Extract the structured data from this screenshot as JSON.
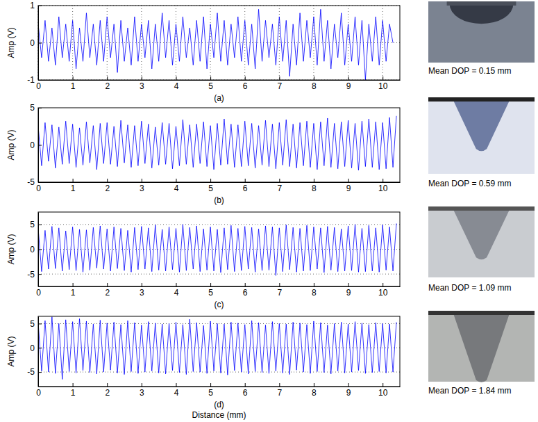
{
  "chart_data": [
    {
      "type": "line",
      "title": "(a)",
      "ylabel": "Amp (V)",
      "color": "#0000ff",
      "grid": true,
      "xlim": [
        0,
        10.5
      ],
      "xticks": [
        0,
        1,
        2,
        3,
        4,
        5,
        6,
        7,
        8,
        9,
        10
      ],
      "ylim": [
        -1,
        1
      ],
      "yticks": [
        -1,
        0,
        1
      ],
      "annotations": [
        "Mean DOP = 0.15 mm"
      ],
      "x": [
        0,
        0.1,
        0.2,
        0.3,
        0.4,
        0.5,
        0.6,
        0.7,
        0.8,
        0.9,
        1,
        1.1,
        1.2,
        1.3,
        1.4,
        1.5,
        1.6,
        1.7,
        1.8,
        1.9,
        2,
        2.1,
        2.2,
        2.3,
        2.4,
        2.5,
        2.6,
        2.7,
        2.8,
        2.9,
        3,
        3.1,
        3.2,
        3.3,
        3.4,
        3.5,
        3.6,
        3.7,
        3.8,
        3.9,
        4,
        4.1,
        4.2,
        4.3,
        4.4,
        4.5,
        4.6,
        4.7,
        4.8,
        4.9,
        5,
        5.1,
        5.2,
        5.3,
        5.4,
        5.5,
        5.6,
        5.7,
        5.8,
        5.9,
        6,
        6.1,
        6.2,
        6.3,
        6.4,
        6.5,
        6.6,
        6.7,
        6.8,
        6.9,
        7,
        7.1,
        7.2,
        7.3,
        7.4,
        7.5,
        7.6,
        7.7,
        7.8,
        7.9,
        8,
        8.1,
        8.2,
        8.3,
        8.4,
        8.5,
        8.6,
        8.7,
        8.8,
        8.9,
        9,
        9.1,
        9.2,
        9.3,
        9.4,
        9.5,
        9.6,
        9.7,
        9.8,
        9.9,
        10,
        10.1,
        10.2,
        10.3
      ],
      "values": [
        0.5,
        -0.4,
        0.6,
        -0.5,
        0.4,
        -0.6,
        0.7,
        -0.4,
        0.5,
        -0.5,
        0.6,
        -0.7,
        0.4,
        -0.5,
        0.8,
        -0.4,
        0.5,
        -0.6,
        0.6,
        -0.5,
        0.7,
        -0.4,
        0.5,
        -0.8,
        0.6,
        -0.5,
        0.4,
        -0.6,
        0.7,
        -0.5,
        0.5,
        -0.4,
        0.6,
        -0.7,
        0.5,
        -0.5,
        0.8,
        -0.4,
        0.6,
        -0.6,
        0.5,
        -0.5,
        0.7,
        -0.4,
        0.4,
        -0.6,
        0.6,
        -0.5,
        0.7,
        -0.7,
        0.5,
        -0.4,
        0.8,
        -0.5,
        0.6,
        -0.6,
        0.5,
        -0.4,
        0.7,
        -0.5,
        0.6,
        -0.6,
        0.5,
        -0.7,
        0.9,
        -0.5,
        0.6,
        -0.4,
        0.5,
        -0.6,
        0.7,
        -0.5,
        0.6,
        -0.9,
        0.5,
        -0.6,
        0.8,
        -0.5,
        0.6,
        -0.4,
        0.7,
        -0.6,
        0.9,
        -0.5,
        0.6,
        -0.7,
        0.5,
        -0.4,
        0.8,
        -0.6,
        0.5,
        -0.5,
        0.7,
        -0.6,
        0.6,
        -1.0,
        0.5,
        -0.5,
        0.7,
        -0.6,
        0.6,
        -0.5,
        0.5,
        0
      ]
    },
    {
      "type": "line",
      "title": "(b)",
      "ylabel": "Amp (V)",
      "color": "#0000ff",
      "grid": false,
      "xlim": [
        0,
        10.5
      ],
      "xticks": [
        0,
        1,
        2,
        3,
        4,
        5,
        6,
        7,
        8,
        9,
        10
      ],
      "ylim": [
        -5,
        5
      ],
      "yticks": [
        -5,
        0,
        5
      ],
      "annotations": [
        "Mean DOP = 0.59 mm"
      ],
      "x": [
        0,
        0.1,
        0.2,
        0.3,
        0.4,
        0.5,
        0.6,
        0.7,
        0.8,
        0.9,
        1,
        1.1,
        1.2,
        1.3,
        1.4,
        1.5,
        1.6,
        1.7,
        1.8,
        1.9,
        2,
        2.1,
        2.2,
        2.3,
        2.4,
        2.5,
        2.6,
        2.7,
        2.8,
        2.9,
        3,
        3.1,
        3.2,
        3.3,
        3.4,
        3.5,
        3.6,
        3.7,
        3.8,
        3.9,
        4,
        4.1,
        4.2,
        4.3,
        4.4,
        4.5,
        4.6,
        4.7,
        4.8,
        4.9,
        5,
        5.1,
        5.2,
        5.3,
        5.4,
        5.5,
        5.6,
        5.7,
        5.8,
        5.9,
        6,
        6.1,
        6.2,
        6.3,
        6.4,
        6.5,
        6.6,
        6.7,
        6.8,
        6.9,
        7,
        7.1,
        7.2,
        7.3,
        7.4,
        7.5,
        7.6,
        7.7,
        7.8,
        7.9,
        8,
        8.1,
        8.2,
        8.3,
        8.4,
        8.5,
        8.6,
        8.7,
        8.8,
        8.9,
        9,
        9.1,
        9.2,
        9.3,
        9.4,
        9.5,
        9.6,
        9.7,
        9.8,
        9.9,
        10,
        10.1,
        10.2,
        10.3,
        10.4
      ],
      "values": [
        2.5,
        -2.8,
        3.0,
        -2.2,
        2.7,
        -3.1,
        2.4,
        -2.6,
        3.2,
        -2.5,
        2.8,
        -3.0,
        2.3,
        -2.7,
        3.1,
        -2.4,
        2.6,
        -3.3,
        2.9,
        -2.5,
        3.0,
        -2.6,
        2.5,
        -2.9,
        3.3,
        -2.4,
        2.7,
        -3.0,
        2.6,
        -2.8,
        3.2,
        -2.5,
        2.8,
        -3.1,
        2.4,
        -2.7,
        3.0,
        -2.6,
        2.9,
        -3.2,
        2.5,
        -2.8,
        3.4,
        -2.6,
        2.7,
        -3.0,
        2.8,
        -2.5,
        3.1,
        -2.9,
        2.6,
        -3.3,
        2.9,
        -2.7,
        3.5,
        -2.6,
        2.8,
        -3.0,
        2.7,
        -2.9,
        3.2,
        -2.8,
        2.9,
        -3.1,
        2.6,
        -2.7,
        3.3,
        -2.9,
        2.8,
        -3.2,
        3.0,
        -2.7,
        3.4,
        -2.9,
        2.8,
        -3.1,
        3.0,
        -2.8,
        3.2,
        -3.0,
        2.9,
        -3.3,
        3.1,
        -2.8,
        3.6,
        -3.0,
        2.9,
        -3.2,
        3.1,
        -2.9,
        3.3,
        -3.1,
        2.9,
        -3.4,
        3.2,
        -2.9,
        3.5,
        -3.0,
        3.1,
        -3.3,
        3.0,
        -3.2,
        3.7,
        -3.0,
        3.9
      ]
    },
    {
      "type": "line",
      "title": "(c)",
      "ylabel": "Amp (V)",
      "color": "#0000ff",
      "grid": "y",
      "xlim": [
        0,
        10.5
      ],
      "xticks": [
        0,
        1,
        2,
        3,
        4,
        5,
        6,
        7,
        8,
        9,
        10
      ],
      "ylim": [
        -7.5,
        7.5
      ],
      "yticks": [
        -5,
        0,
        5
      ],
      "annotations": [
        "Mean DOP = 1.09 mm"
      ],
      "x": [
        0,
        0.1,
        0.2,
        0.3,
        0.4,
        0.5,
        0.6,
        0.7,
        0.8,
        0.9,
        1,
        1.1,
        1.2,
        1.3,
        1.4,
        1.5,
        1.6,
        1.7,
        1.8,
        1.9,
        2,
        2.1,
        2.2,
        2.3,
        2.4,
        2.5,
        2.6,
        2.7,
        2.8,
        2.9,
        3,
        3.1,
        3.2,
        3.3,
        3.4,
        3.5,
        3.6,
        3.7,
        3.8,
        3.9,
        4,
        4.1,
        4.2,
        4.3,
        4.4,
        4.5,
        4.6,
        4.7,
        4.8,
        4.9,
        5,
        5.1,
        5.2,
        5.3,
        5.4,
        5.5,
        5.6,
        5.7,
        5.8,
        5.9,
        6,
        6.1,
        6.2,
        6.3,
        6.4,
        6.5,
        6.6,
        6.7,
        6.8,
        6.9,
        7,
        7.1,
        7.2,
        7.3,
        7.4,
        7.5,
        7.6,
        7.7,
        7.8,
        7.9,
        8,
        8.1,
        8.2,
        8.3,
        8.4,
        8.5,
        8.6,
        8.7,
        8.8,
        8.9,
        9,
        9.1,
        9.2,
        9.3,
        9.4,
        9.5,
        9.6,
        9.7,
        9.8,
        9.9,
        10,
        10.1,
        10.2,
        10.3,
        10.4
      ],
      "values": [
        4.2,
        -4.5,
        3.8,
        -4.0,
        4.6,
        -3.9,
        4.3,
        -4.4,
        3.7,
        -4.1,
        4.5,
        -4.3,
        4.0,
        -4.6,
        3.9,
        -4.2,
        4.4,
        -3.8,
        4.7,
        -4.0,
        4.1,
        -4.4,
        4.5,
        -3.9,
        4.2,
        -4.3,
        3.8,
        -4.6,
        4.4,
        -4.1,
        4.6,
        -4.0,
        4.3,
        -4.5,
        4.9,
        -4.2,
        4.0,
        -4.4,
        4.5,
        -4.1,
        4.2,
        -4.6,
        5.0,
        -4.3,
        4.4,
        -4.0,
        4.7,
        -4.5,
        4.1,
        -4.2,
        4.5,
        -4.4,
        4.0,
        -4.7,
        4.3,
        -4.1,
        4.8,
        -4.5,
        4.2,
        -4.3,
        4.6,
        -4.0,
        4.4,
        -4.6,
        4.1,
        -4.3,
        4.7,
        -4.2,
        4.5,
        -5.3,
        4.3,
        -4.5,
        4.9,
        -4.1,
        4.4,
        -4.6,
        4.2,
        -4.4,
        4.8,
        -4.3,
        4.5,
        -4.0,
        4.3,
        -4.7,
        4.6,
        -4.2,
        4.4,
        -4.5,
        4.1,
        -4.4,
        4.7,
        -4.3,
        5.0,
        -4.6,
        4.2,
        -4.5,
        4.8,
        -4.4,
        4.3,
        -4.6,
        4.9,
        -4.2,
        4.5,
        -4.4,
        5.2
      ]
    },
    {
      "type": "line",
      "title": "(d)",
      "ylabel": "Amp (V)",
      "xlabel": "Distance (mm)",
      "color": "#0000ff",
      "grid": "y",
      "xlim": [
        0,
        10.5
      ],
      "xticks": [
        0,
        1,
        2,
        3,
        4,
        5,
        6,
        7,
        8,
        9,
        10
      ],
      "ylim": [
        -8,
        6.5
      ],
      "yticks": [
        -5,
        0,
        5
      ],
      "annotations": [
        "Mean DOP = 1.84 mm"
      ],
      "x": [
        0,
        0.1,
        0.2,
        0.3,
        0.4,
        0.5,
        0.6,
        0.7,
        0.8,
        0.9,
        1,
        1.1,
        1.2,
        1.3,
        1.4,
        1.5,
        1.6,
        1.7,
        1.8,
        1.9,
        2,
        2.1,
        2.2,
        2.3,
        2.4,
        2.5,
        2.6,
        2.7,
        2.8,
        2.9,
        3,
        3.1,
        3.2,
        3.3,
        3.4,
        3.5,
        3.6,
        3.7,
        3.8,
        3.9,
        4,
        4.1,
        4.2,
        4.3,
        4.4,
        4.5,
        4.6,
        4.7,
        4.8,
        4.9,
        5,
        5.1,
        5.2,
        5.3,
        5.4,
        5.5,
        5.6,
        5.7,
        5.8,
        5.9,
        6,
        6.1,
        6.2,
        6.3,
        6.4,
        6.5,
        6.6,
        6.7,
        6.8,
        6.9,
        7,
        7.1,
        7.2,
        7.3,
        7.4,
        7.5,
        7.6,
        7.7,
        7.8,
        7.9,
        8,
        8.1,
        8.2,
        8.3,
        8.4,
        8.5,
        8.6,
        8.7,
        8.8,
        8.9,
        9,
        9.1,
        9.2,
        9.3,
        9.4,
        9.5,
        9.6,
        9.7,
        9.8,
        9.9,
        10,
        10.1,
        10.2,
        10.3,
        10.4
      ],
      "values": [
        5.2,
        -4.8,
        5.6,
        -5.0,
        6.4,
        -5.3,
        5.0,
        -6.5,
        5.8,
        -4.9,
        5.4,
        -5.2,
        6.0,
        -4.7,
        5.5,
        -5.1,
        4.9,
        -5.4,
        5.7,
        -5.0,
        5.1,
        -4.6,
        5.3,
        -5.2,
        4.8,
        -5.5,
        5.6,
        -4.9,
        5.2,
        -5.3,
        4.7,
        -5.0,
        5.4,
        -4.8,
        5.1,
        -5.2,
        4.9,
        -5.4,
        5.0,
        -4.7,
        5.3,
        -5.1,
        4.8,
        -5.5,
        5.9,
        -4.9,
        5.2,
        -5.0,
        4.6,
        -5.3,
        5.5,
        -4.8,
        5.0,
        -5.2,
        4.9,
        -5.6,
        5.3,
        -4.7,
        5.1,
        -5.0,
        4.8,
        -5.4,
        5.6,
        -4.9,
        5.2,
        -5.1,
        4.7,
        -5.3,
        5.4,
        -4.8,
        5.0,
        -5.2,
        4.9,
        -5.5,
        5.3,
        -4.6,
        5.1,
        -5.0,
        4.8,
        -5.3,
        5.5,
        -4.9,
        5.2,
        -5.1,
        4.7,
        -5.4,
        5.0,
        -4.8,
        5.3,
        -5.2,
        4.9,
        -5.0,
        5.4,
        -4.7,
        5.1,
        -5.3,
        4.8,
        -5.1,
        5.2,
        -4.9,
        5.0,
        -5.2,
        4.9,
        -5.0,
        5.3
      ]
    }
  ]
}
